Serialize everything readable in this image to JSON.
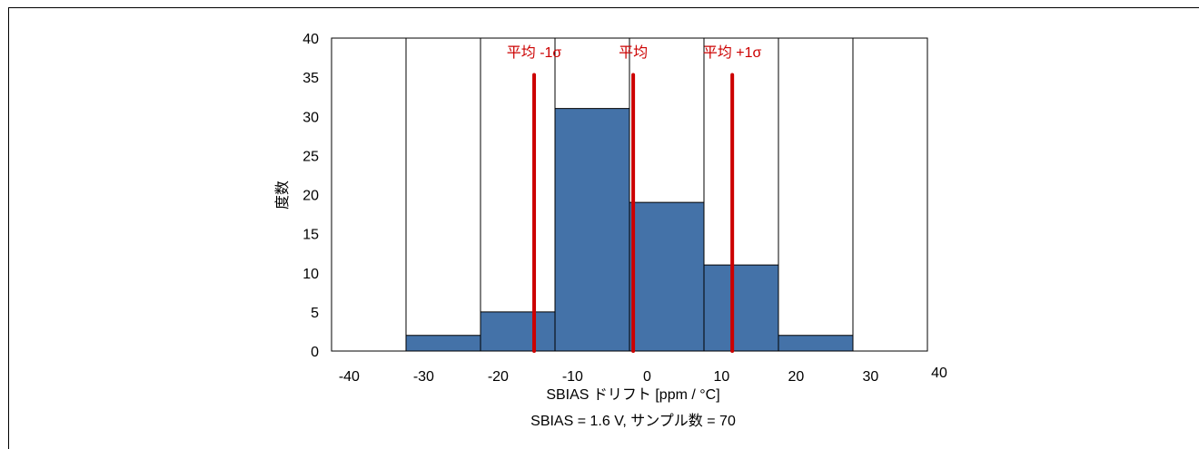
{
  "chart_data": {
    "type": "bar",
    "bins": [
      {
        "from": -42,
        "to": -32,
        "count": 0
      },
      {
        "from": -32,
        "to": -22,
        "count": 2
      },
      {
        "from": -22,
        "to": -12,
        "count": 5
      },
      {
        "from": -12,
        "to": -2,
        "count": 31
      },
      {
        "from": -2,
        "to": 8,
        "count": 19
      },
      {
        "from": 8,
        "to": 18,
        "count": 11
      },
      {
        "from": 18,
        "to": 28,
        "count": 2
      },
      {
        "from": 28,
        "to": 38,
        "count": 0
      }
    ],
    "x_ticks": [
      -40,
      -30,
      -20,
      -10,
      0,
      10,
      20,
      30,
      40
    ],
    "y_ticks": [
      0,
      5,
      10,
      15,
      20,
      25,
      30,
      35,
      40
    ],
    "xlim": [
      -42,
      38
    ],
    "ylim": [
      0,
      40
    ],
    "xlabel": "SBIAS ドリフト [ppm / °C]",
    "subtitle": "SBIAS = 1.6 V, サンプル数 = 70",
    "ylabel": "度数",
    "markers": [
      {
        "label": "平均 -1σ",
        "x": -14.8
      },
      {
        "label": "平均",
        "x": -1.5
      },
      {
        "label": "平均 +1σ",
        "x": 11.8
      }
    ],
    "bar_color": "#4472a8",
    "marker_color": "#cc0000",
    "grid": false
  }
}
